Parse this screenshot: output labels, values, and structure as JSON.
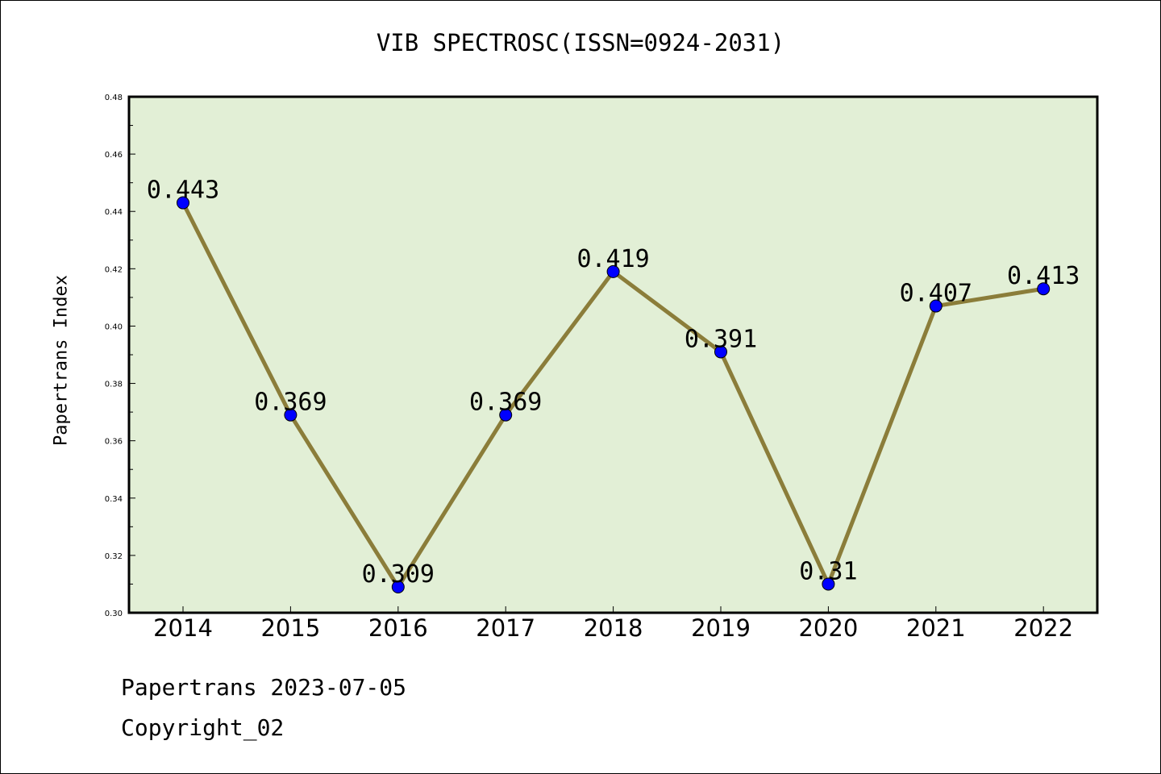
{
  "chart_data": {
    "type": "line",
    "title": "VIB SPECTROSC(ISSN=0924-2031)",
    "xlabel": "",
    "ylabel": "Papertrans Index",
    "categories": [
      "2014",
      "2015",
      "2016",
      "2017",
      "2018",
      "2019",
      "2020",
      "2021",
      "2022"
    ],
    "series": [
      {
        "values": [
          0.443,
          0.369,
          0.309,
          0.369,
          0.419,
          0.391,
          0.31,
          0.407,
          0.413
        ],
        "labels": [
          "0.443",
          "0.369",
          "0.309",
          "0.369",
          "0.419",
          "0.391",
          "0.31",
          "0.407",
          "0.413"
        ],
        "line_color": "#8b7d3a",
        "marker_color": "#0000ff"
      }
    ],
    "ylim": [
      0.3,
      0.48
    ],
    "yticks": [
      "0.30",
      "0.32",
      "0.34",
      "0.36",
      "0.38",
      "0.40",
      "0.42",
      "0.44",
      "0.46",
      "0.48"
    ],
    "plot_background": "#e2efd6",
    "grid": false
  },
  "footer": {
    "line1": "Papertrans 2023-07-05",
    "line2": "Copyright_02"
  }
}
